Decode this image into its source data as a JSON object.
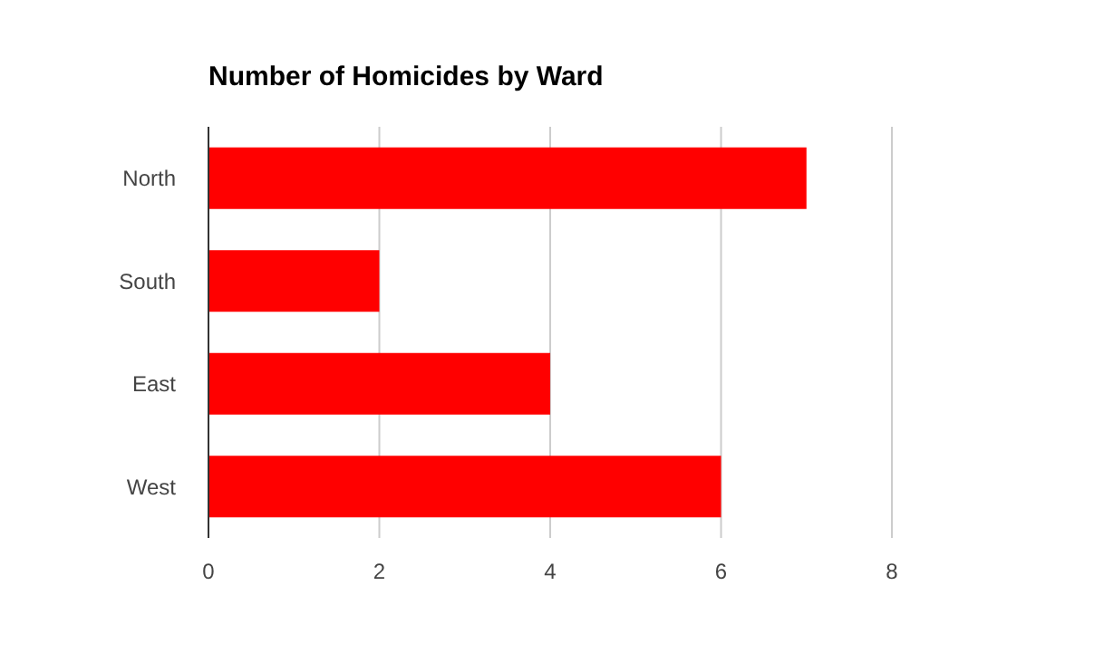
{
  "chart_data": {
    "type": "bar",
    "title": "Number of Homicides by Ward",
    "orientation": "horizontal",
    "categories": [
      "North",
      "South",
      "East",
      "West"
    ],
    "values": [
      7,
      2,
      4,
      6
    ],
    "color": "#ff0000",
    "xlim": [
      0,
      8
    ],
    "xticks": [
      0,
      2,
      4,
      6,
      8
    ],
    "grid": "x",
    "legend": false
  }
}
